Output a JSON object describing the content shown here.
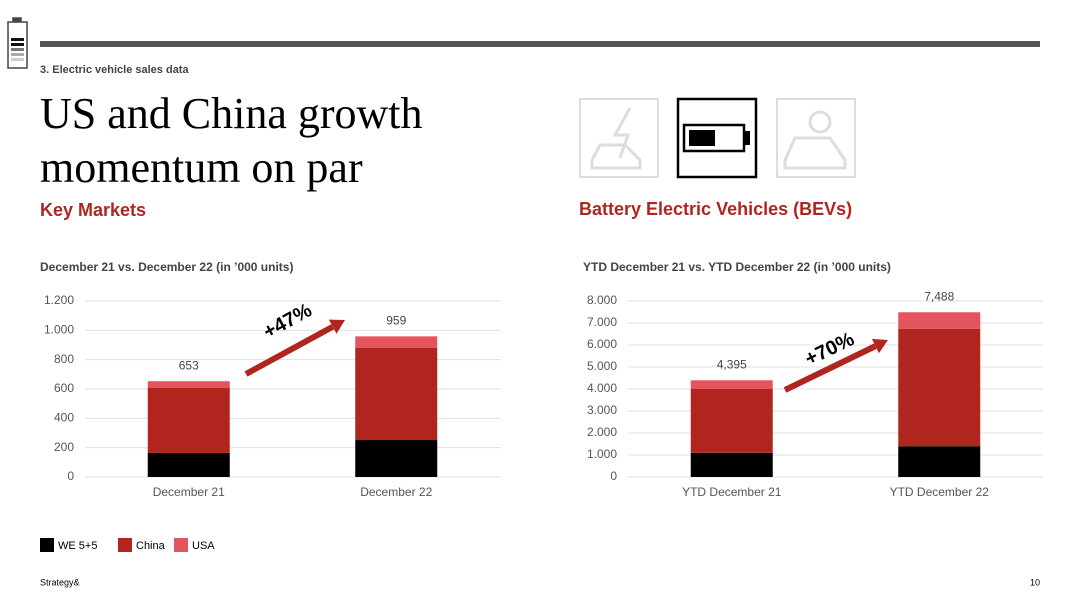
{
  "page": {
    "section": "3. Electric vehicle sales data",
    "title_lines": [
      "US and China growth",
      "momentum on par"
    ],
    "left_heading": "Key Markets",
    "right_heading": "Battery Electric Vehicles (BEVs)",
    "footer": "Strategy&",
    "page_number": "10"
  },
  "chart_data": [
    {
      "type": "bar",
      "stacked": true,
      "subtitle": "December 21 vs. December 22 (in ’000 units)",
      "categories": [
        "December 21",
        "December 22"
      ],
      "series": [
        {
          "name": "WE 5+5",
          "color": "#000000",
          "values": [
            164,
            252
          ]
        },
        {
          "name": "China",
          "color": "#b0261f",
          "values": [
            443,
            628
          ]
        },
        {
          "name": "USA",
          "color": "#e4545e",
          "values": [
            46,
            79
          ]
        }
      ],
      "totals": [
        653,
        959
      ],
      "ylim": [
        0,
        1200
      ],
      "yticks": [
        0,
        200,
        400,
        600,
        800,
        {
          "value": 1000,
          "label": "1.000"
        },
        {
          "value": 1200,
          "label": "1.200"
        }
      ],
      "grid": true,
      "annotation": "+47%"
    },
    {
      "type": "bar",
      "stacked": true,
      "subtitle": "YTD December 21 vs. YTD December 22 (in ’000 units)",
      "categories": [
        "YTD December 21",
        "YTD December 22"
      ],
      "series": [
        {
          "name": "WE 5+5",
          "color": "#000000",
          "values": [
            1100,
            1400
          ]
        },
        {
          "name": "China",
          "color": "#b0261f",
          "values": [
            2900,
            5340
          ]
        },
        {
          "name": "USA",
          "color": "#e4545e",
          "values": [
            395,
            748
          ]
        }
      ],
      "totals": [
        4395,
        7488
      ],
      "total_labels": [
        "4,395",
        "7,488"
      ],
      "ylim": [
        0,
        8000
      ],
      "yticks": [
        0,
        {
          "value": 1000,
          "label": "1.000"
        },
        {
          "value": 2000,
          "label": "2.000"
        },
        {
          "value": 3000,
          "label": "3.000"
        },
        {
          "value": 4000,
          "label": "4.000"
        },
        {
          "value": 5000,
          "label": "5.000"
        },
        {
          "value": 6000,
          "label": "6.000"
        },
        {
          "value": 7000,
          "label": "7.000"
        },
        {
          "value": 8000,
          "label": "8.000"
        }
      ],
      "grid": true,
      "annotation": "+70%"
    }
  ]
}
